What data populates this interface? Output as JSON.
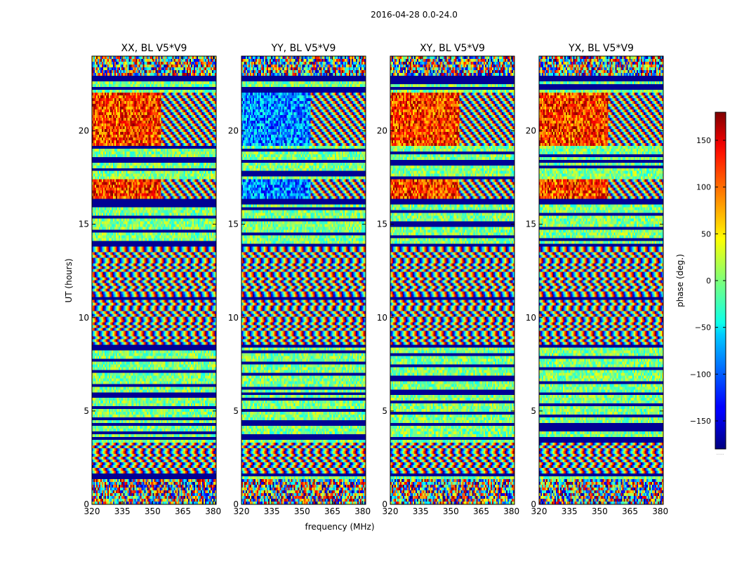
{
  "figure": {
    "suptitle": "2016-04-28 0.0-24.0",
    "xlabel": "frequency (MHz)",
    "ylabel": "UT (hours)",
    "colorbar_label": "phase (deg.)",
    "colorbar_footnote": "......",
    "colormap": "jet"
  },
  "chart_data": {
    "type": "heatmap",
    "title": "2016-04-28 0.0-24.0",
    "xlabel": "frequency (MHz)",
    "ylabel": "UT (hours)",
    "xlim": [
      320,
      381.5
    ],
    "ylim": [
      0,
      24
    ],
    "xticks": [
      320,
      335,
      350,
      365,
      380
    ],
    "yticks": [
      0,
      5,
      10,
      15,
      20
    ],
    "colorbar": {
      "label": "phase (deg.)",
      "range": [
        -180,
        180
      ],
      "ticks": [
        -150,
        -100,
        -50,
        0,
        50,
        100,
        150
      ],
      "tick_labels": [
        "−150",
        "−100",
        "−50",
        "0",
        "50",
        "100",
        "150"
      ]
    },
    "panels": [
      {
        "title": "XX, BL V5*V9",
        "polarization": "XX",
        "baseline": "V5*V9"
      },
      {
        "title": "YY, BL V5*V9",
        "polarization": "YY",
        "baseline": "V5*V9"
      },
      {
        "title": "XY, BL V5*V9",
        "polarization": "XY",
        "baseline": "V5*V9"
      },
      {
        "title": "YX, BL V5*V9",
        "polarization": "YX",
        "baseline": "V5*V9"
      }
    ],
    "flagged_bands_ut_hours": [
      [
        1.45,
        1.6
      ],
      [
        3.45,
        3.55
      ],
      [
        4.2,
        4.28
      ],
      [
        5.9,
        6.0
      ],
      [
        8.45,
        8.55
      ],
      [
        11.0,
        11.08
      ],
      [
        13.85,
        13.95
      ],
      [
        16.1,
        16.3
      ],
      [
        18.3,
        18.4
      ],
      [
        22.2,
        22.3
      ],
      [
        22.7,
        22.9
      ]
    ],
    "structured_bands": [
      {
        "ut": [
          0.0,
          1.4
        ],
        "kind": "noisy"
      },
      {
        "ut": [
          1.6,
          3.3
        ],
        "kind": "fringes"
      },
      {
        "ut": [
          3.3,
          8.5
        ],
        "kind": "striped"
      },
      {
        "ut": [
          8.5,
          11.5
        ],
        "kind": "fringes"
      },
      {
        "ut": [
          11.5,
          14.0
        ],
        "kind": "fringes"
      },
      {
        "ut": [
          14.0,
          16.1
        ],
        "kind": "striped"
      },
      {
        "ut": [
          16.3,
          17.4
        ],
        "kind": "noisy-hot"
      },
      {
        "ut": [
          17.4,
          19.2
        ],
        "kind": "striped"
      },
      {
        "ut": [
          19.2,
          22.1
        ],
        "kind": "noisy-hot"
      },
      {
        "ut": [
          22.1,
          23.0
        ],
        "kind": "striped"
      },
      {
        "ut": [
          23.0,
          24.0
        ],
        "kind": "noisy"
      }
    ]
  }
}
